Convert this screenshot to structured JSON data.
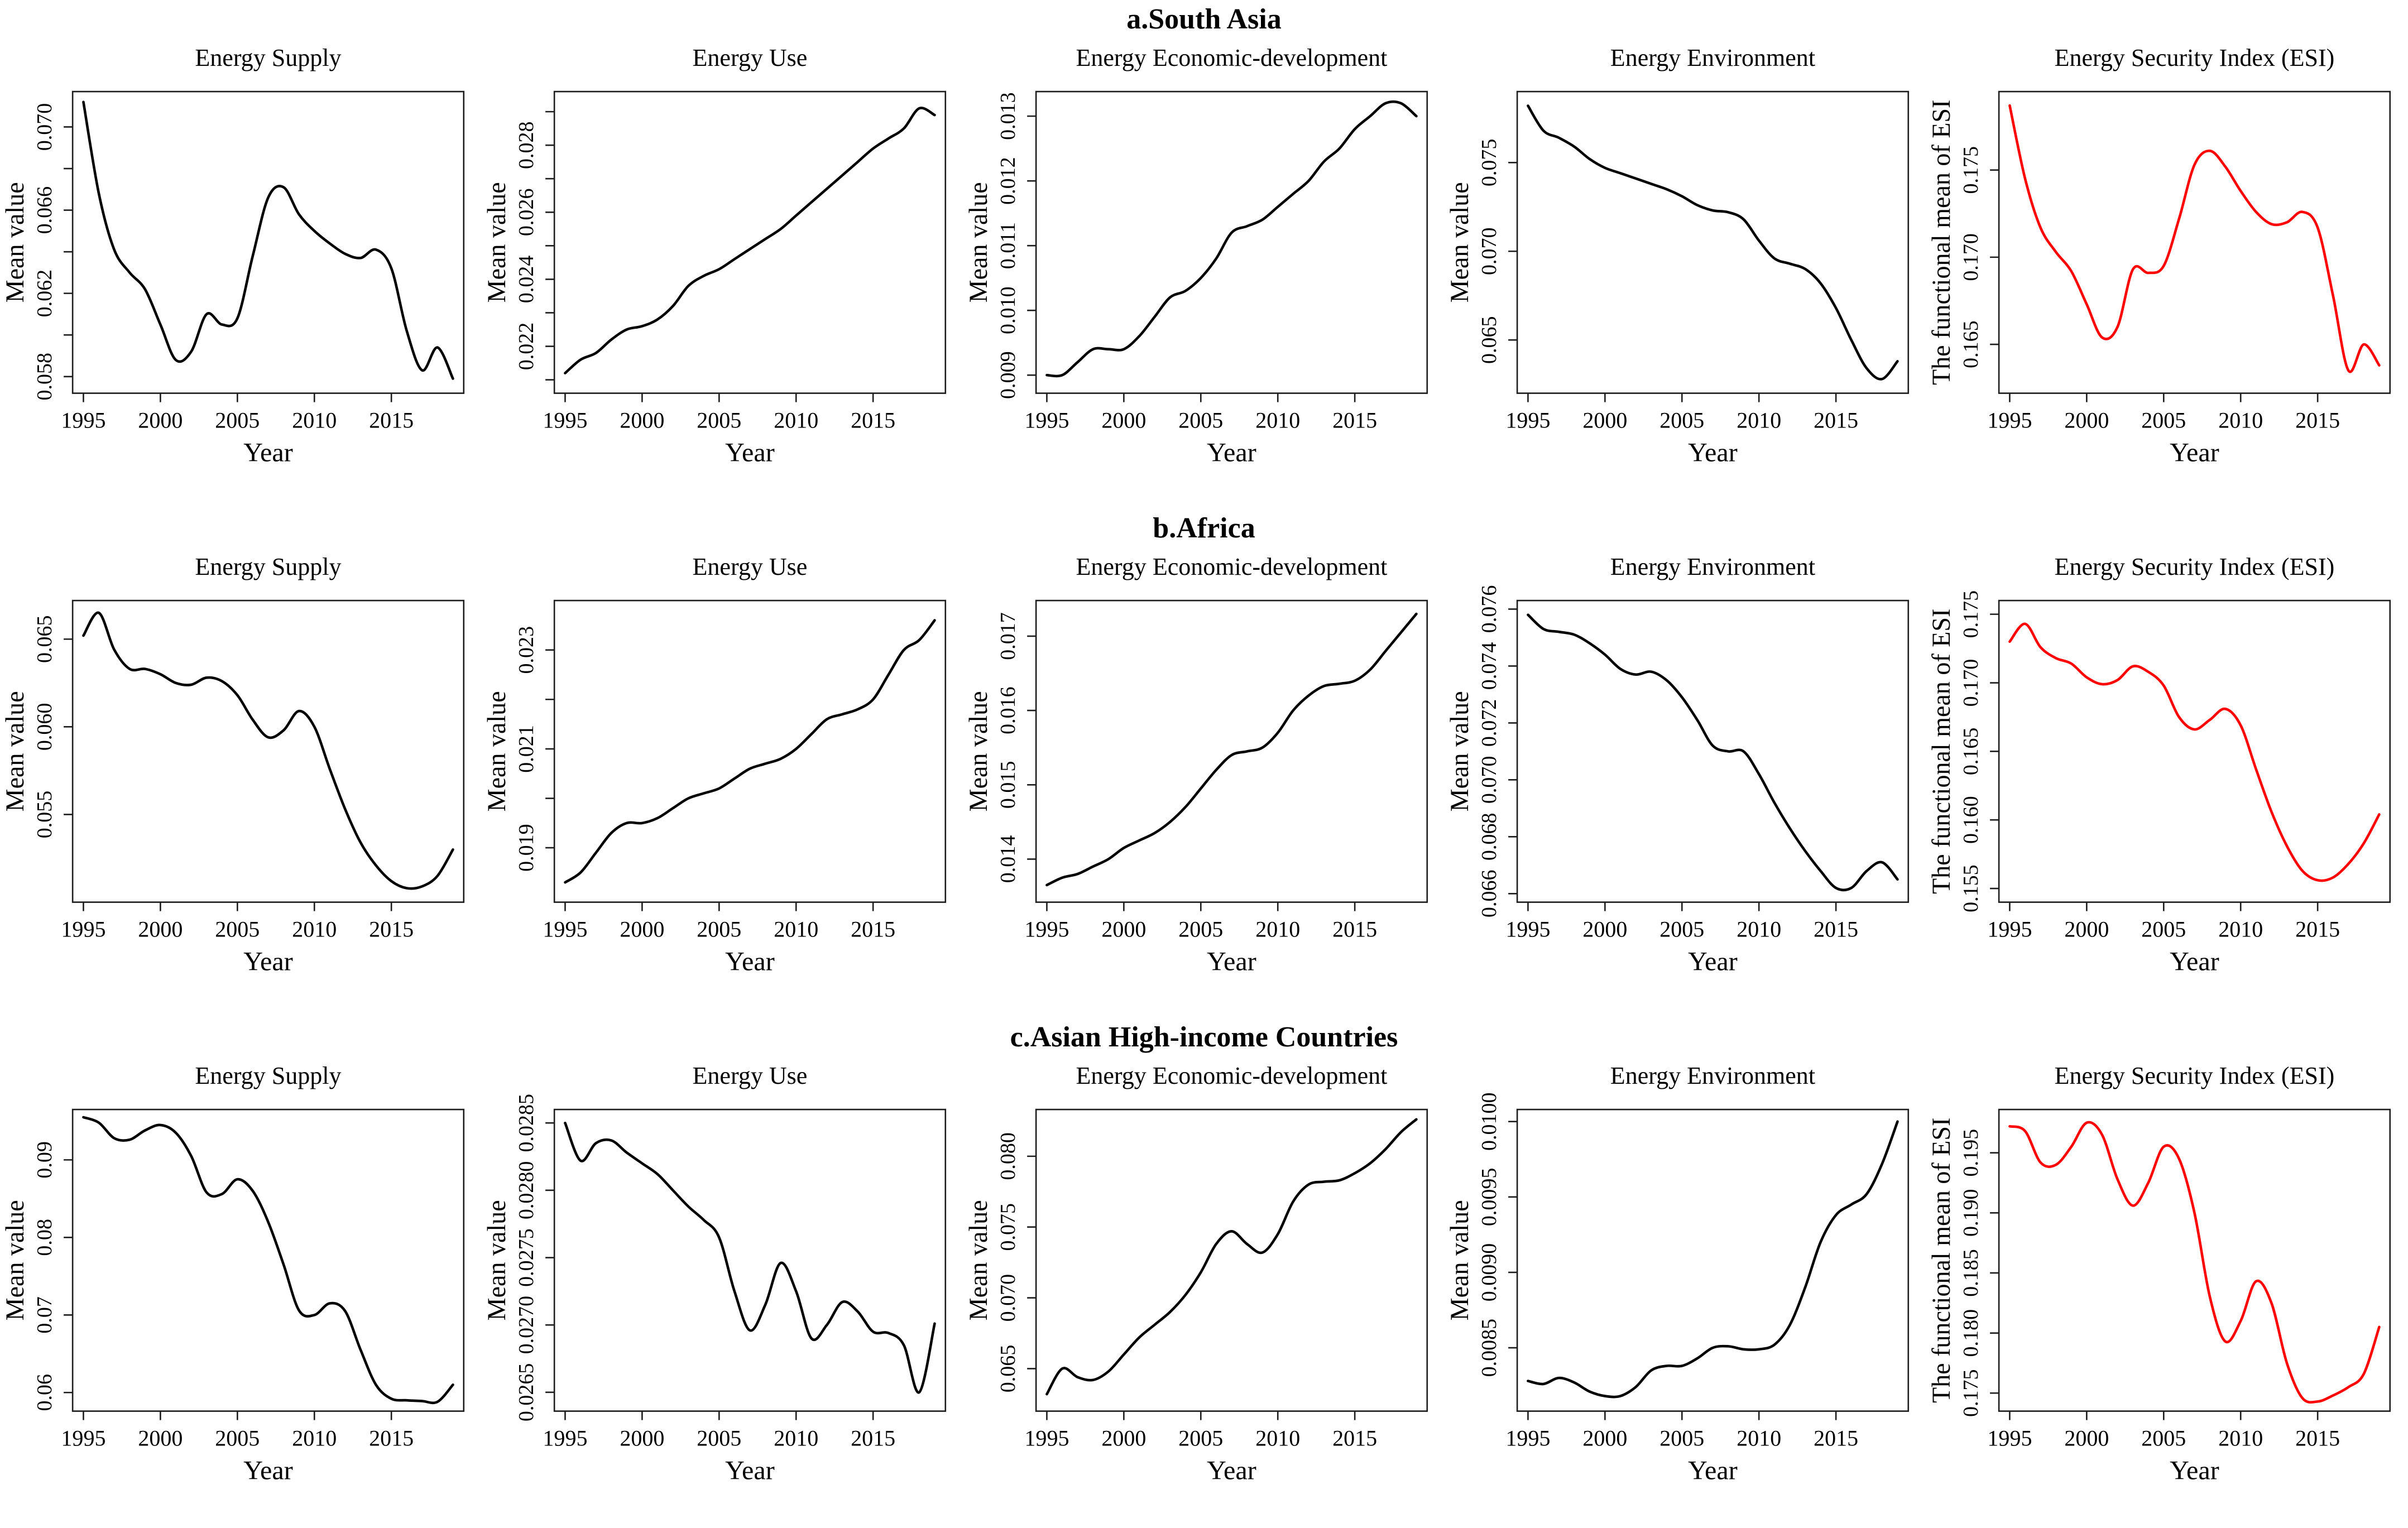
{
  "figure": {
    "background": "#ffffff",
    "axis_color": "#1c1c1c",
    "default_line_color": "#000000",
    "esi_line_color": "#ff0000"
  },
  "chart_data": {
    "type": "line",
    "xlabel": "Year",
    "xticks": [
      1995,
      2000,
      2005,
      2010,
      2015
    ],
    "xlim": [
      1994.3,
      2019.7
    ],
    "grid": false,
    "legend": "none",
    "x": [
      1995,
      1996,
      1997,
      1998,
      1999,
      2000,
      2001,
      2002,
      2003,
      2004,
      2005,
      2006,
      2007,
      2008,
      2009,
      2010,
      2011,
      2012,
      2013,
      2014,
      2015,
      2016,
      2017,
      2018,
      2019
    ],
    "panels": [
      {
        "label": "a.South Asia",
        "charts": [
          {
            "title": "Energy Supply",
            "ylabel": "Mean value",
            "color": "#000000",
            "ylim": [
              0.0572,
              0.0717
            ],
            "yticks": [
              0.058,
              0.062,
              0.066,
              0.07
            ],
            "ytick_labels": [
              "0.058",
              "0.062",
              "0.066",
              "0.070"
            ],
            "yticks_minor": [
              0.06,
              0.064,
              0.068
            ],
            "values": [
              0.0712,
              0.0668,
              0.0641,
              0.063,
              0.0622,
              0.0605,
              0.0588,
              0.0592,
              0.061,
              0.0605,
              0.0608,
              0.0638,
              0.0666,
              0.0671,
              0.0658,
              0.065,
              0.0644,
              0.0639,
              0.0637,
              0.0641,
              0.0632,
              0.0602,
              0.0583,
              0.0594,
              0.0579
            ]
          },
          {
            "title": "Energy Use",
            "ylabel": "Mean value",
            "color": "#000000",
            "ylim": [
              0.0206,
              0.0296
            ],
            "yticks": [
              0.022,
              0.024,
              0.026,
              0.028
            ],
            "ytick_labels": [
              "0.022",
              "0.024",
              "0.026",
              "0.028"
            ],
            "yticks_minor": [
              0.021,
              0.023,
              0.025,
              0.027,
              0.029
            ],
            "values": [
              0.0212,
              0.0216,
              0.0218,
              0.0222,
              0.0225,
              0.0226,
              0.0228,
              0.0232,
              0.0238,
              0.0241,
              0.0243,
              0.0246,
              0.0249,
              0.0252,
              0.0255,
              0.0259,
              0.0263,
              0.0267,
              0.0271,
              0.0275,
              0.0279,
              0.0282,
              0.0285,
              0.0291,
              0.0289
            ]
          },
          {
            "title": "Energy Economic-development",
            "ylabel": "Mean value",
            "color": "#000000",
            "ylim": [
              0.00872,
              0.01338
            ],
            "yticks": [
              0.009,
              0.01,
              0.011,
              0.012,
              0.013
            ],
            "ytick_labels": [
              "0.009",
              "0.010",
              "0.011",
              "0.012",
              "0.013"
            ],
            "yticks_minor": [],
            "values": [
              0.009,
              0.009,
              0.0092,
              0.0094,
              0.0094,
              0.0094,
              0.0096,
              0.0099,
              0.0102,
              0.0103,
              0.0105,
              0.0108,
              0.0112,
              0.0113,
              0.0114,
              0.0116,
              0.0118,
              0.012,
              0.0123,
              0.0125,
              0.0128,
              0.013,
              0.0132,
              0.0132,
              0.013
            ]
          },
          {
            "title": "Energy Environment",
            "ylabel": "Mean value",
            "color": "#000000",
            "ylim": [
              0.062,
              0.079
            ],
            "yticks": [
              0.065,
              0.07,
              0.075
            ],
            "ytick_labels": [
              "0.065",
              "0.070",
              "0.075"
            ],
            "yticks_minor": [],
            "values": [
              0.0782,
              0.0768,
              0.0764,
              0.0759,
              0.0752,
              0.0747,
              0.0744,
              0.0741,
              0.0738,
              0.0735,
              0.0731,
              0.0726,
              0.0723,
              0.0722,
              0.0718,
              0.0706,
              0.0696,
              0.0693,
              0.069,
              0.0682,
              0.0668,
              0.065,
              0.0634,
              0.0628,
              0.0638
            ]
          },
          {
            "title": "Energy Security Index (ESI)",
            "ylabel": "The functional mean of ESI",
            "color": "#ff0000",
            "ylim": [
              0.1622,
              0.1795
            ],
            "yticks": [
              0.165,
              0.17,
              0.175
            ],
            "ytick_labels": [
              "0.165",
              "0.170",
              "0.175"
            ],
            "yticks_minor": [],
            "values": [
              0.1787,
              0.1745,
              0.1717,
              0.1703,
              0.1692,
              0.1673,
              0.1654,
              0.166,
              0.1693,
              0.1691,
              0.1695,
              0.1722,
              0.1753,
              0.1761,
              0.1752,
              0.1738,
              0.1726,
              0.1719,
              0.172,
              0.1726,
              0.1717,
              0.1678,
              0.1635,
              0.165,
              0.1638
            ]
          }
        ]
      },
      {
        "label": "b.Africa",
        "charts": [
          {
            "title": "Energy Supply",
            "ylabel": "Mean value",
            "color": "#000000",
            "ylim": [
              0.05,
              0.0672
            ],
            "yticks": [
              0.055,
              0.06,
              0.065
            ],
            "ytick_labels": [
              "0.055",
              "0.060",
              "0.065"
            ],
            "yticks_minor": [],
            "values": [
              0.0652,
              0.0665,
              0.0644,
              0.0633,
              0.0633,
              0.063,
              0.0625,
              0.0624,
              0.0628,
              0.0626,
              0.0618,
              0.0604,
              0.0594,
              0.0598,
              0.0609,
              0.06,
              0.0576,
              0.0553,
              0.0534,
              0.0521,
              0.0512,
              0.0508,
              0.0509,
              0.0515,
              0.053
            ]
          },
          {
            "title": "Energy Use",
            "ylabel": "Mean value",
            "color": "#000000",
            "ylim": [
              0.0179,
              0.024
            ],
            "yticks": [
              0.019,
              0.021,
              0.023
            ],
            "ytick_labels": [
              "0.019",
              "0.021",
              "0.023"
            ],
            "yticks_minor": [
              0.02,
              0.022
            ],
            "values": [
              0.0183,
              0.0185,
              0.0189,
              0.0193,
              0.0195,
              0.0195,
              0.0196,
              0.0198,
              0.02,
              0.0201,
              0.0202,
              0.0204,
              0.0206,
              0.0207,
              0.0208,
              0.021,
              0.0213,
              0.0216,
              0.0217,
              0.0218,
              0.022,
              0.0225,
              0.023,
              0.0232,
              0.0236
            ]
          },
          {
            "title": "Energy Economic-development",
            "ylabel": "Mean value",
            "color": "#000000",
            "ylim": [
              0.01342,
              0.01748
            ],
            "yticks": [
              0.014,
              0.015,
              0.016,
              0.017
            ],
            "ytick_labels": [
              "0.014",
              "0.015",
              "0.016",
              "0.017"
            ],
            "yticks_minor": [],
            "values": [
              0.01365,
              0.01375,
              0.0138,
              0.0139,
              0.014,
              0.01415,
              0.01425,
              0.01435,
              0.0145,
              0.0147,
              0.01495,
              0.0152,
              0.0154,
              0.01545,
              0.0155,
              0.0157,
              0.016,
              0.0162,
              0.01633,
              0.01636,
              0.0164,
              0.01655,
              0.0168,
              0.01705,
              0.0173
            ]
          },
          {
            "title": "Energy Environment",
            "ylabel": "Mean value",
            "color": "#000000",
            "ylim": [
              0.0657,
              0.0763
            ],
            "yticks": [
              0.066,
              0.068,
              0.07,
              0.072,
              0.074,
              0.076
            ],
            "ytick_labels": [
              "0.066",
              "0.068",
              "0.070",
              "0.072",
              "0.074",
              "0.076"
            ],
            "yticks_minor": [],
            "values": [
              0.0758,
              0.0753,
              0.0752,
              0.0751,
              0.0748,
              0.0744,
              0.0739,
              0.0737,
              0.0738,
              0.0735,
              0.0729,
              0.0721,
              0.0712,
              0.071,
              0.071,
              0.0702,
              0.0692,
              0.0683,
              0.0675,
              0.0668,
              0.0662,
              0.0662,
              0.0668,
              0.0671,
              0.0665
            ]
          },
          {
            "title": "Energy Security Index (ESI)",
            "ylabel": "The functional mean of ESI",
            "color": "#ff0000",
            "ylim": [
              0.154,
              0.176
            ],
            "yticks": [
              0.155,
              0.16,
              0.165,
              0.17,
              0.175
            ],
            "ytick_labels": [
              "0.155",
              "0.160",
              "0.165",
              "0.170",
              "0.175"
            ],
            "yticks_minor": [],
            "values": [
              0.173,
              0.1743,
              0.1726,
              0.1718,
              0.1714,
              0.1704,
              0.1699,
              0.1702,
              0.1712,
              0.1708,
              0.1698,
              0.1675,
              0.1666,
              0.1673,
              0.1681,
              0.1669,
              0.1637,
              0.1606,
              0.1581,
              0.1563,
              0.1556,
              0.1558,
              0.1568,
              0.1583,
              0.1604
            ]
          }
        ]
      },
      {
        "label": "c.Asian High-income Countries",
        "charts": [
          {
            "title": "Energy Supply",
            "ylabel": "Mean value",
            "color": "#000000",
            "ylim": [
              0.0576,
              0.0965
            ],
            "yticks": [
              0.06,
              0.07,
              0.08,
              0.09
            ],
            "ytick_labels": [
              "0.06",
              "0.07",
              "0.08",
              "0.09"
            ],
            "yticks_minor": [],
            "values": [
              0.0955,
              0.0948,
              0.0928,
              0.0926,
              0.0938,
              0.0945,
              0.0935,
              0.0905,
              0.0858,
              0.0856,
              0.0875,
              0.086,
              0.082,
              0.0765,
              0.0706,
              0.07,
              0.0715,
              0.0705,
              0.0655,
              0.061,
              0.0592,
              0.059,
              0.0589,
              0.0588,
              0.061
            ]
          },
          {
            "title": "Energy Use",
            "ylabel": "Mean value",
            "color": "#000000",
            "ylim": [
              0.02636,
              0.0286
            ],
            "yticks": [
              0.0265,
              0.027,
              0.0275,
              0.028,
              0.0285
            ],
            "ytick_labels": [
              "0.0265",
              "0.0270",
              "0.0275",
              "0.0280",
              "0.0285"
            ],
            "yticks_minor": [],
            "values": [
              0.0285,
              0.02822,
              0.02835,
              0.02837,
              0.02828,
              0.0282,
              0.02812,
              0.028,
              0.02788,
              0.02778,
              0.02765,
              0.02725,
              0.02696,
              0.02715,
              0.02746,
              0.02725,
              0.0269,
              0.027,
              0.02717,
              0.0271,
              0.02695,
              0.02694,
              0.02685,
              0.0265,
              0.02701
            ]
          },
          {
            "title": "Energy Economic-development",
            "ylabel": "Mean value",
            "color": "#000000",
            "ylim": [
              0.062,
              0.0833
            ],
            "yticks": [
              0.065,
              0.07,
              0.075,
              0.08
            ],
            "ytick_labels": [
              "0.065",
              "0.070",
              "0.075",
              "0.080"
            ],
            "yticks_minor": [],
            "values": [
              0.0632,
              0.065,
              0.0644,
              0.0642,
              0.0648,
              0.066,
              0.0672,
              0.0681,
              0.069,
              0.0702,
              0.0718,
              0.0738,
              0.0747,
              0.0738,
              0.0732,
              0.0745,
              0.0768,
              0.078,
              0.0782,
              0.0783,
              0.0788,
              0.0795,
              0.0805,
              0.0817,
              0.0826
            ]
          },
          {
            "title": "Energy Environment",
            "ylabel": "Mean value",
            "color": "#000000",
            "ylim": [
              0.00808,
              0.01008
            ],
            "yticks": [
              0.0085,
              0.009,
              0.0095,
              0.01
            ],
            "ytick_labels": [
              "0.0085",
              "0.0090",
              "0.0095",
              "0.0100"
            ],
            "yticks_minor": [],
            "values": [
              0.00828,
              0.00826,
              0.0083,
              0.00827,
              0.00821,
              0.00818,
              0.00818,
              0.00824,
              0.00835,
              0.00838,
              0.00838,
              0.00843,
              0.0085,
              0.00851,
              0.00849,
              0.00849,
              0.00852,
              0.00865,
              0.0089,
              0.0092,
              0.00938,
              0.00945,
              0.00952,
              0.00972,
              0.01
            ]
          },
          {
            "title": "Energy Security Index (ESI)",
            "ylabel": "The functional mean of ESI",
            "color": "#ff0000",
            "ylim": [
              0.1735,
              0.1986
            ],
            "yticks": [
              0.175,
              0.18,
              0.185,
              0.19,
              0.195
            ],
            "ytick_labels": [
              "0.175",
              "0.180",
              "0.185",
              "0.190",
              "0.195"
            ],
            "yticks_minor": [],
            "values": [
              0.1972,
              0.1968,
              0.1942,
              0.194,
              0.1955,
              0.1975,
              0.1965,
              0.1928,
              0.1906,
              0.1925,
              0.1955,
              0.1945,
              0.19,
              0.183,
              0.1793,
              0.181,
              0.1843,
              0.1825,
              0.1775,
              0.1746,
              0.1743,
              0.1748,
              0.1755,
              0.1766,
              0.1805
            ]
          }
        ]
      }
    ]
  }
}
